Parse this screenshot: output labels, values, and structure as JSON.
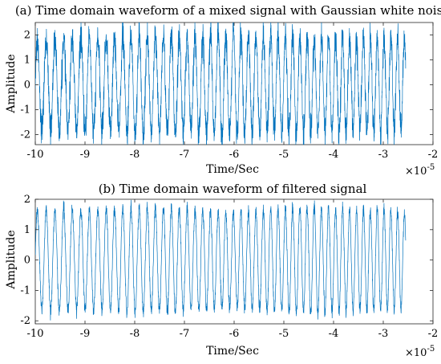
{
  "chart_data": [
    {
      "type": "line",
      "title": "(a) Time domain waveform of a mixed signal with Gaussian white noise",
      "xlabel": "Time/Sec",
      "ylabel": "Amplitude",
      "x_multiplier_base": "×10",
      "x_multiplier_exp": "-5",
      "xlim": [
        -10,
        -2
      ],
      "ylim": [
        -2.4,
        2.5
      ],
      "xticks": [
        -10,
        -9,
        -8,
        -7,
        -6,
        -5,
        -4,
        -3,
        -2
      ],
      "yticks": [
        -2,
        -1,
        0,
        1,
        2
      ],
      "xtick_labels": [
        "-10",
        "-9",
        "-8",
        "-7",
        "-6",
        "-5",
        "-4",
        "-3",
        "-2"
      ],
      "ytick_labels": [
        "-2",
        "-1",
        "0",
        "1",
        "2"
      ],
      "series": [
        {
          "color": "#0072BD",
          "x_start": -10,
          "x_end": -2.55,
          "envelope": [
            [
              -10.0,
              1.9
            ],
            [
              -9.5,
              2.0
            ],
            [
              -9.0,
              2.1
            ],
            [
              -8.5,
              2.0
            ],
            [
              -8.0,
              2.2
            ],
            [
              -7.5,
              2.1
            ],
            [
              -7.0,
              2.0
            ],
            [
              -6.5,
              2.2
            ],
            [
              -6.0,
              2.3
            ],
            [
              -5.5,
              2.1
            ],
            [
              -5.0,
              2.1
            ],
            [
              -4.5,
              2.1
            ],
            [
              -4.0,
              2.0
            ],
            [
              -3.5,
              2.0
            ],
            [
              -3.0,
              2.1
            ],
            [
              -2.55,
              1.9
            ]
          ],
          "noise": 0.3,
          "cycles_per_unit": [
            5.6,
            7.4
          ]
        }
      ]
    },
    {
      "type": "line",
      "title": "(b) Time domain waveform of filtered signal",
      "xlabel": "Time/Sec",
      "ylabel": "Amplitude",
      "x_multiplier_base": "×10",
      "x_multiplier_exp": "-5",
      "xlim": [
        -10,
        -2
      ],
      "ylim": [
        -2.1,
        2.0
      ],
      "xticks": [
        -10,
        -9,
        -8,
        -7,
        -6,
        -5,
        -4,
        -3,
        -2
      ],
      "yticks": [
        -2,
        -1,
        0,
        1,
        2
      ],
      "xtick_labels": [
        "-10",
        "-9",
        "-8",
        "-7",
        "-6",
        "-5",
        "-4",
        "-3",
        "-2"
      ],
      "ytick_labels": [
        "-2",
        "-1",
        "0",
        "1",
        "2"
      ],
      "series": [
        {
          "color": "#0072BD",
          "x_start": -10,
          "x_end": -2.55,
          "envelope": [
            [
              -10.0,
              1.75
            ],
            [
              -9.5,
              1.8
            ],
            [
              -9.0,
              1.75
            ],
            [
              -8.5,
              1.8
            ],
            [
              -8.0,
              1.85
            ],
            [
              -7.5,
              1.85
            ],
            [
              -7.0,
              1.8
            ],
            [
              -6.5,
              1.75
            ],
            [
              -6.0,
              1.7
            ],
            [
              -5.5,
              1.75
            ],
            [
              -5.0,
              1.85
            ],
            [
              -4.5,
              1.9
            ],
            [
              -4.0,
              1.85
            ],
            [
              -3.5,
              1.75
            ],
            [
              -3.0,
              1.8
            ],
            [
              -2.55,
              1.7
            ]
          ],
          "noise": 0.08,
          "cycles_per_unit": [
            5.6,
            7.4
          ]
        }
      ]
    }
  ]
}
